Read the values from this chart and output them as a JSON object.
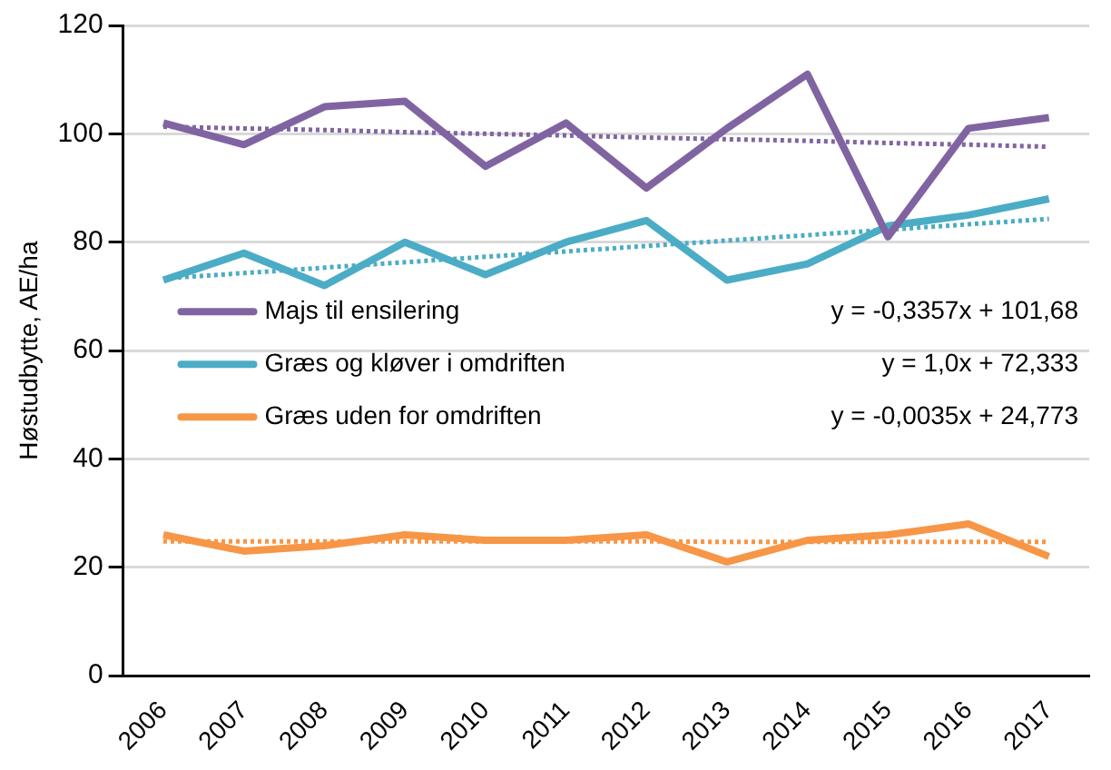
{
  "chart_data": {
    "type": "line",
    "ylabel": "Høstudbytte, AE/ha",
    "categories": [
      "2006",
      "2007",
      "2008",
      "2009",
      "2010",
      "2011",
      "2012",
      "2013",
      "2014",
      "2015",
      "2016",
      "2017"
    ],
    "series": [
      {
        "name": "Majs til ensilering",
        "color": "#8064a2",
        "values": [
          102,
          98,
          105,
          106,
          94,
          102,
          90,
          101,
          111,
          81,
          101,
          103
        ]
      },
      {
        "name": "Græs og kløver i omdriften",
        "color": "#4bacc6",
        "values": [
          73,
          78,
          72,
          80,
          74,
          80,
          84,
          73,
          76,
          83,
          85,
          88
        ]
      },
      {
        "name": "Græs uden for omdriften",
        "color": "#f79646",
        "values": [
          26,
          23,
          24,
          26,
          25,
          25,
          26,
          21,
          25,
          26,
          28,
          22
        ]
      },
      {
        "type": "line",
        "line_style": "dotted",
        "color": "#8064a2",
        "values": [
          101.3,
          101.0,
          100.7,
          100.3,
          100.0,
          99.7,
          99.3,
          99.0,
          98.7,
          98.3,
          98.0,
          97.6
        ]
      },
      {
        "type": "line",
        "line_style": "dotted",
        "color": "#4bacc6",
        "values": [
          73.3,
          74.3,
          75.3,
          76.3,
          77.3,
          78.3,
          79.3,
          80.3,
          81.3,
          82.3,
          83.3,
          84.3
        ]
      },
      {
        "type": "line",
        "line_style": "dotted",
        "color": "#f79646",
        "values": [
          24.8,
          24.8,
          24.8,
          24.8,
          24.8,
          24.8,
          24.8,
          24.7,
          24.7,
          24.7,
          24.7,
          24.7
        ]
      }
    ],
    "annotations": [
      "y = -0,3357x + 101,68",
      "y = 1,0x + 72,333",
      "y = -0,0035x + 24,773"
    ],
    "ylim": [
      0,
      120
    ],
    "yticks": [
      0,
      20,
      40,
      60,
      80,
      100,
      120
    ],
    "grid": "y",
    "legend": "left",
    "marker": "none",
    "line_style": "solid"
  }
}
